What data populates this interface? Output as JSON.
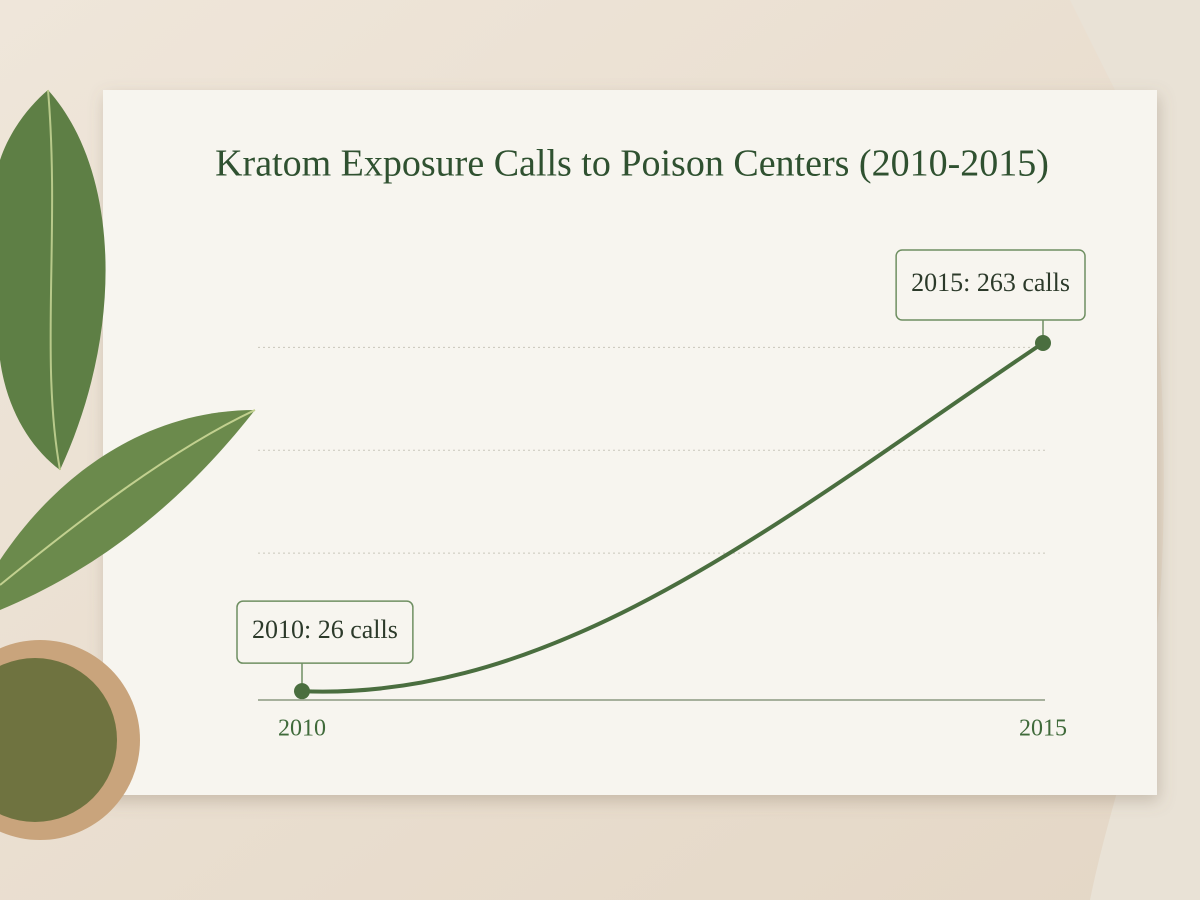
{
  "chart_data": {
    "type": "line",
    "title": "Kratom Exposure Calls to Poison Centers (2010-2015)",
    "x": [
      2010,
      2015
    ],
    "values": [
      26,
      263
    ],
    "value_labels": [
      "2010: 26 calls",
      "2015: 263 calls"
    ],
    "color": "#4a6e3f",
    "xlim": [
      2010,
      2015
    ],
    "xticks": [
      2010,
      2015
    ],
    "ylim": [
      20,
      280
    ],
    "yticks": [
      120,
      190,
      260
    ],
    "grid": true
  }
}
